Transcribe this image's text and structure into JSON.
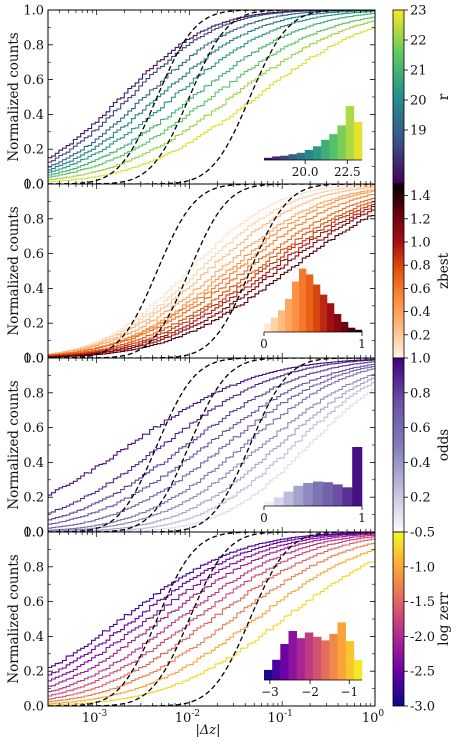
{
  "chart_data": [
    {
      "type": "line",
      "panel": "r",
      "ylabel": "Normalized counts",
      "xscale": "log",
      "xlim": [
        0.0003,
        1.0
      ],
      "ylim": [
        0,
        1
      ],
      "yticks": [
        "0.0",
        "0.2",
        "0.4",
        "0.6",
        "0.8",
        "1.0"
      ],
      "colorbar": {
        "label": "r",
        "min": 17.2,
        "max": 23.0,
        "ticks": [
          "19",
          "20",
          "21",
          "22",
          "23"
        ],
        "colormap": [
          "#440154",
          "#3b528b",
          "#21918c",
          "#5ec962",
          "#fde725"
        ]
      },
      "series": [
        {
          "color_value": 17.6,
          "median_dz": 0.0018,
          "width": 0.75
        },
        {
          "color_value": 18.4,
          "median_dz": 0.0022,
          "width": 0.75
        },
        {
          "color_value": 19.1,
          "median_dz": 0.0032,
          "width": 0.8
        },
        {
          "color_value": 19.7,
          "median_dz": 0.0045,
          "width": 0.85
        },
        {
          "color_value": 20.3,
          "median_dz": 0.0065,
          "width": 0.9
        },
        {
          "color_value": 20.9,
          "median_dz": 0.0105,
          "width": 0.95
        },
        {
          "color_value": 21.5,
          "median_dz": 0.017,
          "width": 1.0
        },
        {
          "color_value": 22.1,
          "median_dz": 0.028,
          "width": 1.0
        },
        {
          "color_value": 22.7,
          "median_dz": 0.05,
          "width": 1.0
        }
      ],
      "reference_curves": [
        0.0045,
        0.01,
        0.045
      ],
      "inset": {
        "xticks": [
          "20.0",
          "22.5"
        ],
        "values": [
          0.03,
          0.05,
          0.06,
          0.08,
          0.1,
          0.14,
          0.19,
          0.28,
          0.36,
          0.48,
          0.75,
          0.53
        ]
      }
    },
    {
      "type": "line",
      "panel": "zbest",
      "ylabel": "Normalized counts",
      "xscale": "log",
      "xlim": [
        0.0003,
        1.0
      ],
      "ylim": [
        0,
        1
      ],
      "yticks": [
        "0.0",
        "0.2",
        "0.4",
        "0.6",
        "0.8",
        "1.0"
      ],
      "colorbar": {
        "label": "zbest",
        "min": 0.0,
        "max": 1.5,
        "ticks": [
          "0.2",
          "0.4",
          "0.6",
          "0.8",
          "1.0",
          "1.2",
          "1.4"
        ],
        "colormap": [
          "#fff5eb",
          "#fdbe85",
          "#fd8d3c",
          "#e6550d",
          "#a50f15",
          "#67000d",
          "#000000"
        ]
      },
      "series": [
        {
          "color_value": 0.08,
          "median_dz": 0.0095,
          "width": 0.75
        },
        {
          "color_value": 0.15,
          "median_dz": 0.012,
          "width": 0.8
        },
        {
          "color_value": 0.25,
          "median_dz": 0.015,
          "width": 0.85
        },
        {
          "color_value": 0.35,
          "median_dz": 0.02,
          "width": 0.9
        },
        {
          "color_value": 0.45,
          "median_dz": 0.025,
          "width": 0.9
        },
        {
          "color_value": 0.55,
          "median_dz": 0.03,
          "width": 0.95
        },
        {
          "color_value": 0.65,
          "median_dz": 0.038,
          "width": 1.0
        },
        {
          "color_value": 0.75,
          "median_dz": 0.048,
          "width": 1.0
        },
        {
          "color_value": 0.85,
          "median_dz": 0.058,
          "width": 1.0
        },
        {
          "color_value": 0.95,
          "median_dz": 0.07,
          "width": 1.0
        },
        {
          "color_value": 1.1,
          "median_dz": 0.085,
          "width": 1.0
        },
        {
          "color_value": 1.3,
          "median_dz": 0.11,
          "width": 1.0
        }
      ],
      "reference_curves": [
        0.0045,
        0.01,
        0.045
      ],
      "inset": {
        "xticks": [
          "0",
          "1"
        ],
        "values": [
          0.12,
          0.2,
          0.3,
          0.46,
          0.7,
          0.88,
          0.8,
          0.66,
          0.52,
          0.4,
          0.25,
          0.14,
          0.06,
          0.03
        ]
      }
    },
    {
      "type": "line",
      "panel": "odds",
      "ylabel": "Normalized counts",
      "xscale": "log",
      "xlim": [
        0.0003,
        1.0
      ],
      "ylim": [
        0,
        1
      ],
      "yticks": [
        "0.0",
        "0.2",
        "0.4",
        "0.6",
        "0.8",
        "1.0"
      ],
      "colorbar": {
        "label": "odds",
        "min": 0.0,
        "max": 1.0,
        "ticks": [
          "0.2",
          "0.4",
          "0.6",
          "0.8",
          "1.0"
        ],
        "colormap": [
          "#fcfbfd",
          "#bcbddc",
          "#807dba",
          "#6a51a3",
          "#3f007d"
        ]
      },
      "series": [
        {
          "color_value": 0.95,
          "median_dz": 0.0022,
          "width": 1.1
        },
        {
          "color_value": 0.88,
          "median_dz": 0.005,
          "width": 1.0
        },
        {
          "color_value": 0.8,
          "median_dz": 0.009,
          "width": 1.0
        },
        {
          "color_value": 0.72,
          "median_dz": 0.015,
          "width": 1.0
        },
        {
          "color_value": 0.64,
          "median_dz": 0.024,
          "width": 0.95
        },
        {
          "color_value": 0.55,
          "median_dz": 0.038,
          "width": 0.9
        },
        {
          "color_value": 0.45,
          "median_dz": 0.06,
          "width": 0.9
        },
        {
          "color_value": 0.35,
          "median_dz": 0.09,
          "width": 0.85
        },
        {
          "color_value": 0.25,
          "median_dz": 0.13,
          "width": 0.8
        },
        {
          "color_value": 0.12,
          "median_dz": 0.19,
          "width": 0.75
        }
      ],
      "reference_curves": [
        0.0045,
        0.01,
        0.045
      ],
      "inset": {
        "xticks": [
          "0",
          "1"
        ],
        "values": [
          0.06,
          0.12,
          0.2,
          0.28,
          0.32,
          0.34,
          0.33,
          0.3,
          0.26,
          0.82
        ]
      }
    },
    {
      "type": "line",
      "panel": "log_zerr",
      "ylabel": "Normalized counts",
      "xlabel": "|Δz|",
      "xscale": "log",
      "xlim": [
        0.0003,
        1.0
      ],
      "ylim": [
        0,
        1
      ],
      "xticks": [
        "10^-3",
        "10^-2",
        "10^-1",
        "10^0"
      ],
      "yticks": [
        "0.0",
        "0.2",
        "0.4",
        "0.6",
        "0.8",
        "1.0"
      ],
      "colorbar": {
        "label": "log zerr",
        "min": -3.0,
        "max": -0.5,
        "ticks": [
          "-3.0",
          "-2.5",
          "-2.0",
          "-1.5",
          "-1.0",
          "-0.5"
        ],
        "colormap": [
          "#0d0887",
          "#6a00a8",
          "#b12a90",
          "#e16462",
          "#fca636",
          "#f0f921"
        ]
      },
      "series": [
        {
          "color_value": -2.7,
          "median_dz": 0.0018,
          "width": 1.0
        },
        {
          "color_value": -2.5,
          "median_dz": 0.0025,
          "width": 1.0
        },
        {
          "color_value": -2.3,
          "median_dz": 0.0035,
          "width": 1.0
        },
        {
          "color_value": -2.1,
          "median_dz": 0.005,
          "width": 1.0
        },
        {
          "color_value": -1.9,
          "median_dz": 0.0075,
          "width": 1.0
        },
        {
          "color_value": -1.7,
          "median_dz": 0.011,
          "width": 1.0
        },
        {
          "color_value": -1.5,
          "median_dz": 0.017,
          "width": 1.0
        },
        {
          "color_value": -1.3,
          "median_dz": 0.028,
          "width": 1.0
        },
        {
          "color_value": -1.0,
          "median_dz": 0.05,
          "width": 1.0
        },
        {
          "color_value": -0.7,
          "median_dz": 0.1,
          "width": 1.0
        }
      ],
      "reference_curves": [
        0.0045,
        0.01,
        0.045
      ],
      "inset": {
        "xticks": [
          "−3",
          "−2",
          "−1"
        ],
        "values": [
          0.14,
          0.28,
          0.5,
          0.68,
          0.58,
          0.66,
          0.6,
          0.55,
          0.64,
          0.8,
          0.54,
          0.28
        ]
      }
    }
  ]
}
